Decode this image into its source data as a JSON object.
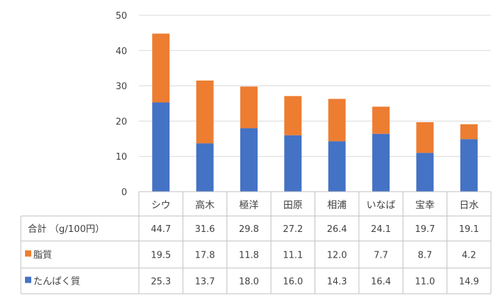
{
  "chart_data": {
    "type": "bar",
    "stacked": true,
    "categories": [
      "シウ",
      "高木",
      "極洋",
      "田原",
      "相浦",
      "いなば",
      "宝幸",
      "日水"
    ],
    "series": [
      {
        "name": "たんぱく質",
        "color": "#4472c4",
        "values": [
          25.3,
          13.7,
          18.0,
          16.0,
          14.3,
          16.4,
          11.0,
          14.9
        ]
      },
      {
        "name": "脂質",
        "color": "#ed7d31",
        "values": [
          19.5,
          17.8,
          11.8,
          11.1,
          12.0,
          7.7,
          8.7,
          4.2
        ]
      }
    ],
    "totals": {
      "label": "合計 （g/100円）",
      "values": [
        "44.7",
        "31.6",
        "29.8",
        "27.2",
        "26.4",
        "24.1",
        "19.7",
        "19.1"
      ]
    },
    "table_values": {
      "fat": [
        "19.5",
        "17.8",
        "11.8",
        "11.1",
        "12.0",
        "7.7",
        "8.7",
        "4.2"
      ],
      "protein": [
        "25.3",
        "13.7",
        "18.0",
        "16.0",
        "14.3",
        "16.4",
        "11.0",
        "14.9"
      ]
    },
    "yticks": [
      "0",
      "10",
      "20",
      "30",
      "40",
      "50"
    ],
    "ylim": [
      0,
      50
    ],
    "grid": true,
    "data_table": true
  }
}
